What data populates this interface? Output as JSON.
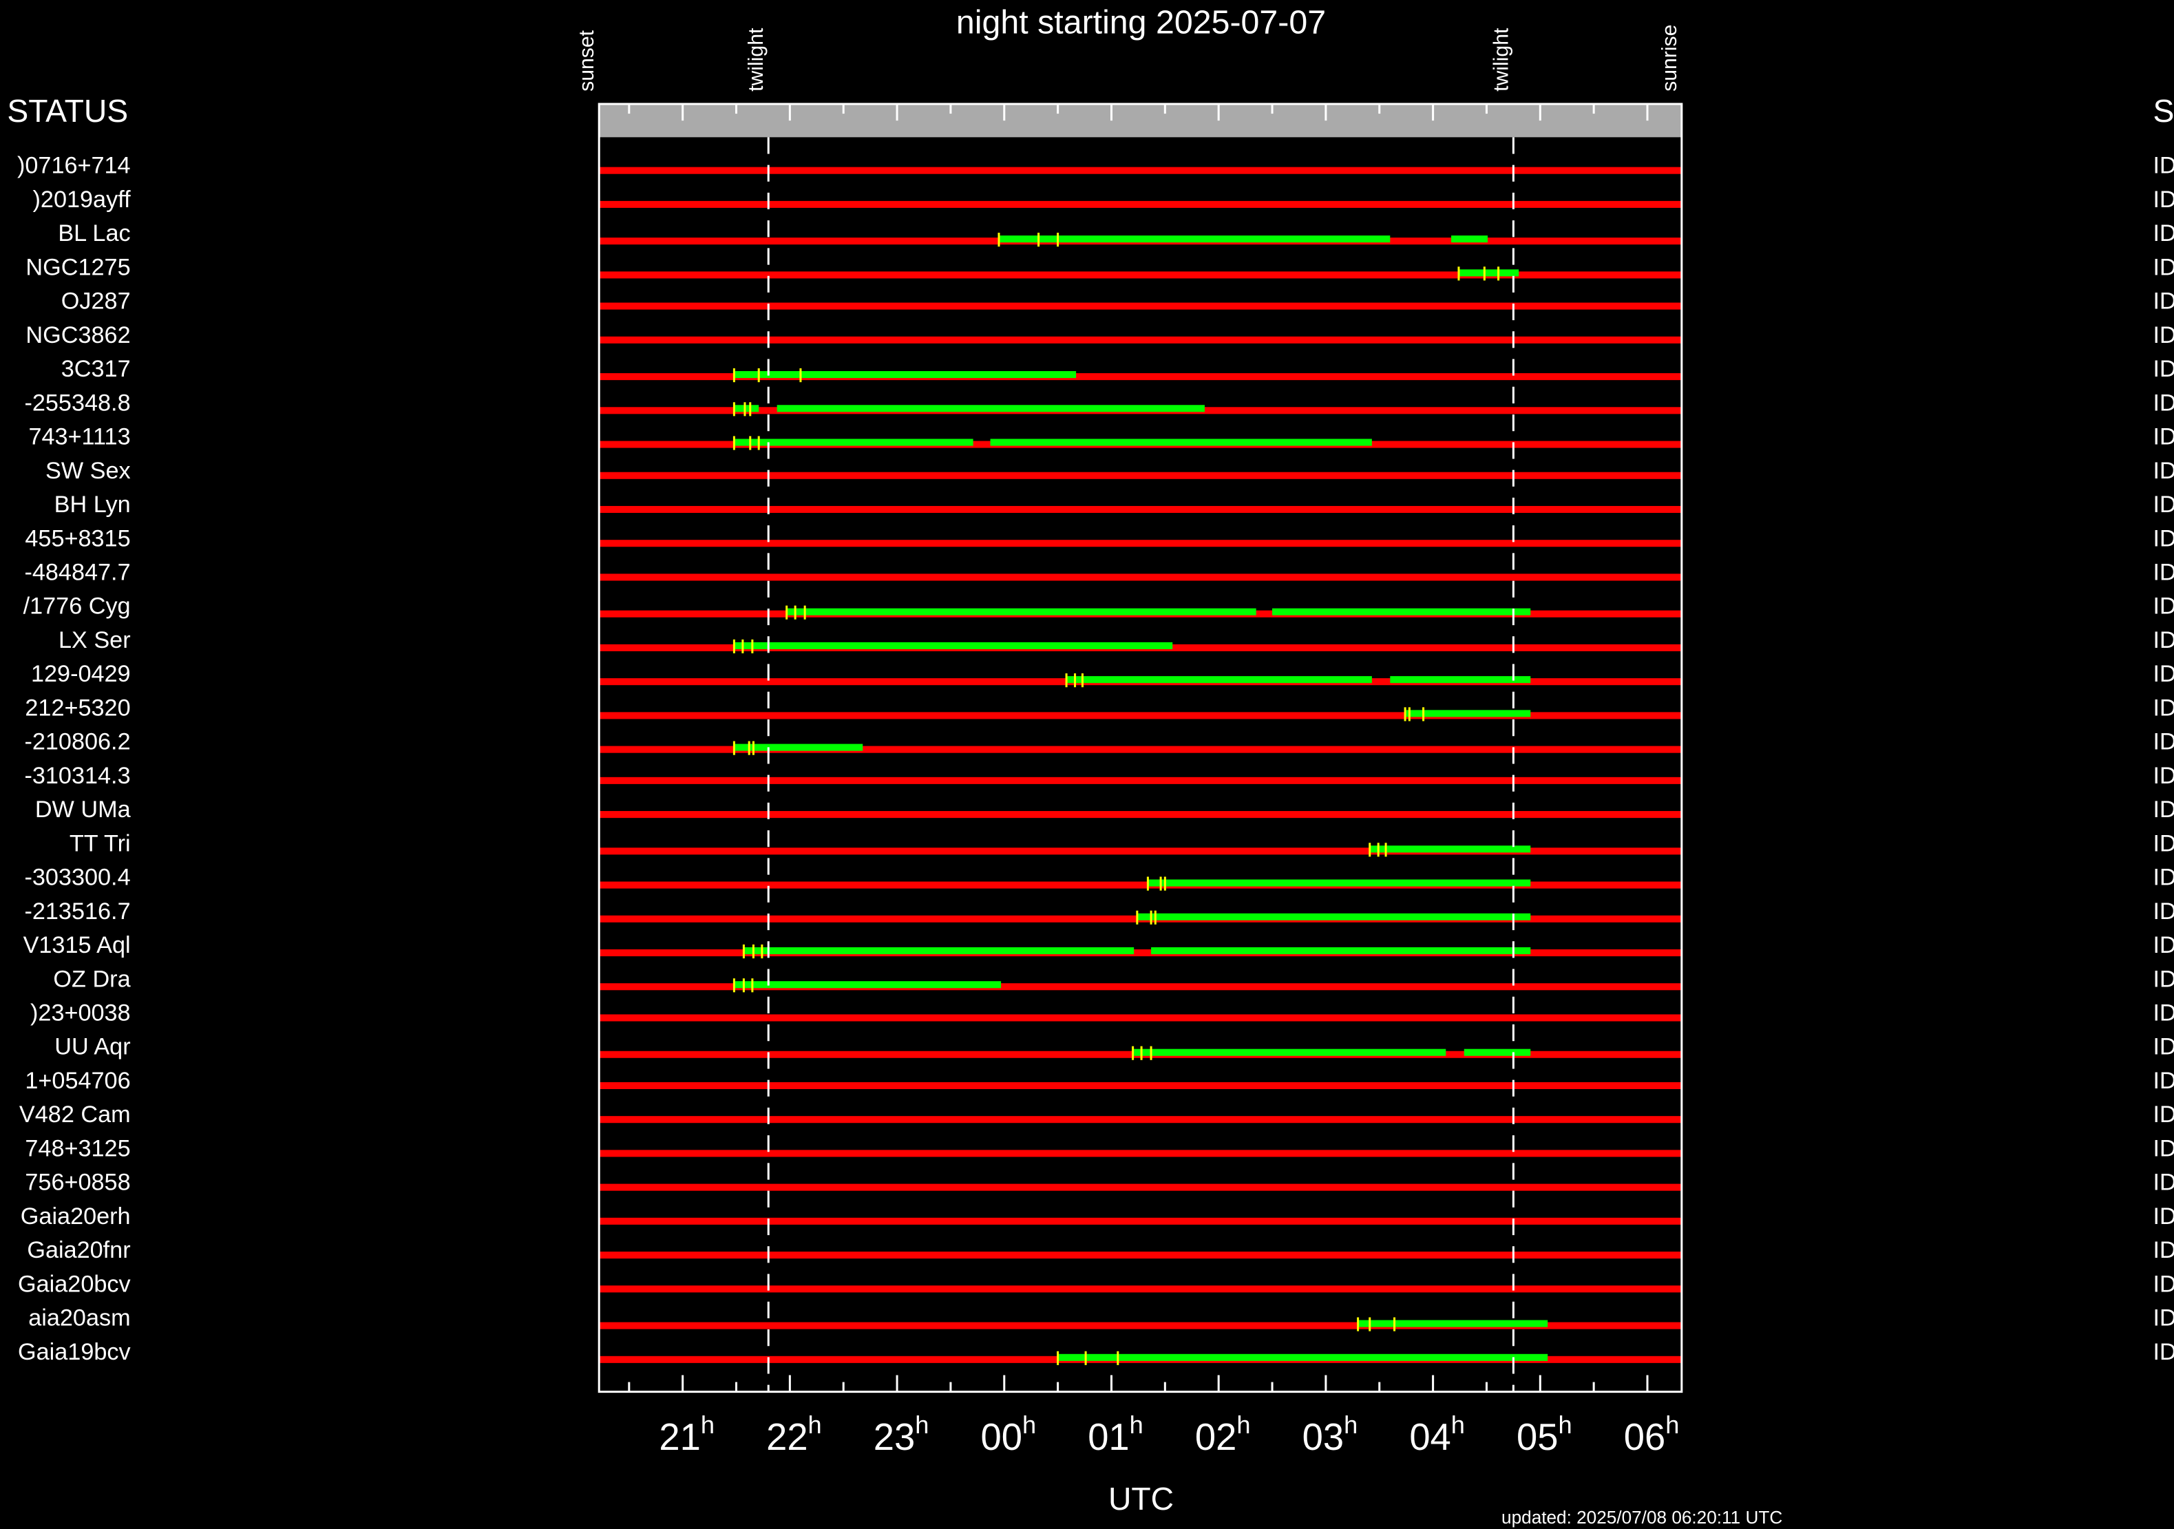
{
  "chart_data": {
    "type": "timeline",
    "title": "night starting 2025-07-07",
    "xlabel": "UTC",
    "footer": "updated: 2025/07/08 06:20:11 UTC",
    "left_header": "STATUS",
    "right_header": "S",
    "x_tick_suffix": "h",
    "xlim": [
      20.22,
      30.32
    ],
    "xticks": [
      {
        "value": 21,
        "label": "21"
      },
      {
        "value": 22,
        "label": "22"
      },
      {
        "value": 23,
        "label": "23"
      },
      {
        "value": 24,
        "label": "00"
      },
      {
        "value": 25,
        "label": "01"
      },
      {
        "value": 26,
        "label": "02"
      },
      {
        "value": 27,
        "label": "03"
      },
      {
        "value": 28,
        "label": "04"
      },
      {
        "value": 29,
        "label": "05"
      },
      {
        "value": 30,
        "label": "06"
      }
    ],
    "xminorticks": [
      20.5,
      21.5,
      22.5,
      23.5,
      24.5,
      25.5,
      26.5,
      27.5,
      28.5,
      29.5
    ],
    "events": [
      {
        "label": "sunset",
        "x": 20.22
      },
      {
        "label": "twilight",
        "x": 21.8,
        "dashed": true
      },
      {
        "label": "twilight",
        "x": 28.75,
        "dashed": true
      },
      {
        "label": "sunrise",
        "x": 30.32
      }
    ],
    "colors": {
      "unobservable": "#ff0000",
      "observable": "#00ff00",
      "marker": "#ffff00",
      "band": "#aaaaaa"
    },
    "rows": [
      {
        "name": ")0716+714",
        "status": "ID",
        "segments": [],
        "markers": []
      },
      {
        "name": ")2019ayff",
        "status": "ID",
        "segments": [],
        "markers": []
      },
      {
        "name": "BL Lac",
        "status": "ID",
        "segments": [
          [
            23.95,
            27.6
          ],
          [
            28.17,
            28.51
          ]
        ],
        "markers": [
          23.95,
          24.32,
          24.5
        ]
      },
      {
        "name": "NGC1275",
        "status": "ID",
        "segments": [
          [
            28.24,
            28.8
          ]
        ],
        "markers": [
          28.24,
          28.48,
          28.61
        ]
      },
      {
        "name": "OJ287",
        "status": "ID",
        "segments": [],
        "markers": []
      },
      {
        "name": "NGC3862",
        "status": "ID",
        "segments": [],
        "markers": []
      },
      {
        "name": "3C317",
        "status": "ID",
        "segments": [
          [
            21.48,
            24.67
          ]
        ],
        "markers": [
          21.48,
          21.71,
          22.1
        ]
      },
      {
        "name": "-255348.8",
        "status": "ID",
        "segments": [
          [
            21.48,
            21.71
          ],
          [
            21.88,
            25.87
          ]
        ],
        "markers": [
          21.48,
          21.58,
          21.63
        ]
      },
      {
        "name": "743+1113",
        "status": "ID",
        "segments": [
          [
            21.48,
            23.71
          ],
          [
            23.87,
            27.43
          ]
        ],
        "markers": [
          21.48,
          21.63,
          21.71
        ]
      },
      {
        "name": "SW Sex",
        "status": "ID",
        "segments": [],
        "markers": []
      },
      {
        "name": "BH Lyn",
        "status": "ID",
        "segments": [],
        "markers": []
      },
      {
        "name": "455+8315",
        "status": "ID",
        "segments": [],
        "markers": []
      },
      {
        "name": "-484847.7",
        "status": "ID",
        "segments": [],
        "markers": []
      },
      {
        "name": "/1776 Cyg",
        "status": "ID",
        "segments": [
          [
            21.97,
            26.35
          ],
          [
            26.5,
            28.91
          ]
        ],
        "markers": [
          21.97,
          22.05,
          22.14
        ]
      },
      {
        "name": "LX Ser",
        "status": "ID",
        "segments": [
          [
            21.48,
            25.57
          ]
        ],
        "markers": [
          21.48,
          21.56,
          21.65
        ]
      },
      {
        "name": "129-0429",
        "status": "ID",
        "segments": [
          [
            24.58,
            27.43
          ],
          [
            27.6,
            28.91
          ]
        ],
        "markers": [
          24.58,
          24.66,
          24.73
        ]
      },
      {
        "name": "212+5320",
        "status": "ID",
        "segments": [
          [
            27.74,
            28.91
          ]
        ],
        "markers": [
          27.74,
          27.78,
          27.91
        ]
      },
      {
        "name": "-210806.2",
        "status": "ID",
        "segments": [
          [
            21.48,
            22.68
          ]
        ],
        "markers": [
          21.48,
          21.62,
          21.66
        ]
      },
      {
        "name": "-310314.3",
        "status": "ID",
        "segments": [],
        "markers": []
      },
      {
        "name": "DW UMa",
        "status": "ID",
        "segments": [],
        "markers": []
      },
      {
        "name": "TT Tri",
        "status": "ID",
        "segments": [
          [
            27.41,
            28.91
          ]
        ],
        "markers": [
          27.41,
          27.49,
          27.56
        ]
      },
      {
        "name": "-303300.4",
        "status": "ID",
        "segments": [
          [
            25.34,
            28.91
          ]
        ],
        "markers": [
          25.34,
          25.46,
          25.5
        ]
      },
      {
        "name": "-213516.7",
        "status": "ID",
        "segments": [
          [
            25.24,
            28.91
          ]
        ],
        "markers": [
          25.24,
          25.37,
          25.41
        ]
      },
      {
        "name": "V1315 Aql",
        "status": "ID",
        "segments": [
          [
            21.57,
            25.21
          ],
          [
            25.37,
            28.91
          ]
        ],
        "markers": [
          21.57,
          21.66,
          21.74
        ]
      },
      {
        "name": "OZ Dra",
        "status": "ID",
        "segments": [
          [
            21.48,
            23.97
          ]
        ],
        "markers": [
          21.48,
          21.57,
          21.65
        ]
      },
      {
        "name": ")23+0038",
        "status": "ID",
        "segments": [],
        "markers": []
      },
      {
        "name": "UU Aqr",
        "status": "ID",
        "segments": [
          [
            25.2,
            28.12
          ],
          [
            28.29,
            28.91
          ]
        ],
        "markers": [
          25.2,
          25.28,
          25.37
        ]
      },
      {
        "name": "1+054706",
        "status": "ID",
        "segments": [],
        "markers": []
      },
      {
        "name": "V482 Cam",
        "status": "ID",
        "segments": [],
        "markers": []
      },
      {
        "name": "748+3125",
        "status": "ID",
        "segments": [],
        "markers": []
      },
      {
        "name": "756+0858",
        "status": "ID",
        "segments": [],
        "markers": []
      },
      {
        "name": "Gaia20erh",
        "status": "ID",
        "segments": [],
        "markers": []
      },
      {
        "name": "Gaia20fnr",
        "status": "ID",
        "segments": [],
        "markers": []
      },
      {
        "name": "Gaia20bcv",
        "status": "ID",
        "segments": [],
        "markers": []
      },
      {
        "name": "aia20asm",
        "status": "ID",
        "segments": [
          [
            27.3,
            29.07
          ]
        ],
        "markers": [
          27.3,
          27.41,
          27.64
        ]
      },
      {
        "name": "Gaia19bcv",
        "status": "ID",
        "segments": [
          [
            24.5,
            29.07
          ]
        ],
        "markers": [
          24.5,
          24.76,
          25.06
        ]
      }
    ]
  }
}
